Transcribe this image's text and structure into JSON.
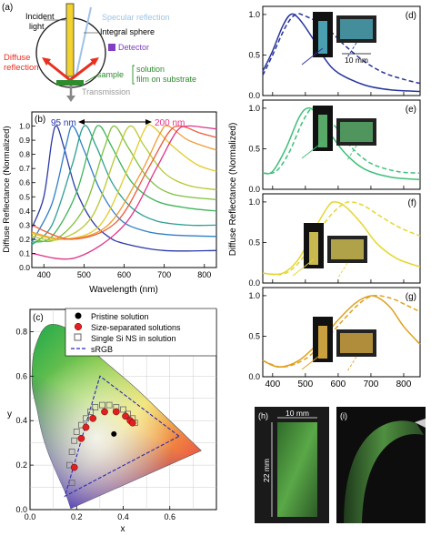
{
  "panel_a": {
    "label": "(a)",
    "incident": "Incident",
    "light": "light",
    "specular": "Specular reflection",
    "integral": "Integral sphere",
    "detector": "Detector",
    "diffuse1": "Diffuse",
    "diffuse2": "reflection",
    "sample": "sample",
    "solution": "solution",
    "film": "film on substrate",
    "transmission": "Transmission",
    "colors": {
      "incident": "#f2d22e",
      "specular": "#9fc3e8",
      "detector": "#8040c0",
      "diffuse": "#e83020",
      "sample": "#2e8b2e",
      "transmission": "#888888"
    }
  },
  "panel_b": {
    "label": "(b)",
    "ann_left": "95 nm",
    "ann_right": "200 nm",
    "ann_left_color": "#2233aa",
    "ann_right_color": "#e0338a"
  },
  "panel_c": {
    "label": "(c)",
    "legend": [
      "Pristine solution",
      "Size-separated solutions",
      "Single Si NS in solution",
      "sRGB"
    ]
  },
  "right_ylabel": "Diffuse Reflectance (Normalized)",
  "right_panels": [
    {
      "label": "(d)",
      "color": "#27349a",
      "scale": "10 mm"
    },
    {
      "label": "(e)",
      "color": "#3fbf7a"
    },
    {
      "label": "(f)",
      "color": "#e6d62e"
    },
    {
      "label": "(g)",
      "color": "#e0a020"
    }
  ],
  "photos": {
    "h_label": "(h)",
    "i_label": "(i)",
    "width_text": "10 mm",
    "height_text": "22 mm"
  },
  "chart_data": [
    {
      "type": "line",
      "panel": "b",
      "xlabel": "Wavelength (nm)",
      "ylabel": "Diffuse Reflectance (Normalized)",
      "xlim": [
        370,
        830
      ],
      "ylim": [
        0,
        1.1
      ],
      "xticks": [
        400,
        500,
        600,
        700,
        800
      ],
      "yticks": [
        0.0,
        0.1,
        0.2,
        0.3,
        0.4,
        0.5,
        0.6,
        0.7,
        0.8,
        0.9,
        1.0
      ],
      "series": [
        {
          "color": "#2a3aa8",
          "values": [
            [
              370,
              0.28
            ],
            [
              400,
              0.5
            ],
            [
              420,
              0.9
            ],
            [
              432,
              1.0
            ],
            [
              450,
              0.85
            ],
            [
              480,
              0.55
            ],
            [
              520,
              0.33
            ],
            [
              560,
              0.22
            ],
            [
              600,
              0.17
            ],
            [
              700,
              0.12
            ],
            [
              830,
              0.12
            ]
          ]
        },
        {
          "color": "#2f7fc7",
          "values": [
            [
              370,
              0.18
            ],
            [
              420,
              0.45
            ],
            [
              455,
              0.86
            ],
            [
              472,
              1.0
            ],
            [
              500,
              0.83
            ],
            [
              540,
              0.55
            ],
            [
              590,
              0.34
            ],
            [
              650,
              0.26
            ],
            [
              720,
              0.23
            ],
            [
              830,
              0.22
            ]
          ]
        },
        {
          "color": "#2e9e92",
          "values": [
            [
              370,
              0.16
            ],
            [
              420,
              0.3
            ],
            [
              470,
              0.72
            ],
            [
              500,
              1.0
            ],
            [
              530,
              0.86
            ],
            [
              570,
              0.6
            ],
            [
              620,
              0.42
            ],
            [
              680,
              0.33
            ],
            [
              760,
              0.3
            ],
            [
              830,
              0.3
            ]
          ]
        },
        {
          "color": "#3fb35a",
          "values": [
            [
              370,
              0.18
            ],
            [
              420,
              0.22
            ],
            [
              480,
              0.52
            ],
            [
              520,
              0.92
            ],
            [
              540,
              1.0
            ],
            [
              570,
              0.85
            ],
            [
              620,
              0.6
            ],
            [
              680,
              0.47
            ],
            [
              760,
              0.42
            ],
            [
              830,
              0.4
            ]
          ]
        },
        {
          "color": "#7fc13c",
          "values": [
            [
              370,
              0.2
            ],
            [
              430,
              0.2
            ],
            [
              500,
              0.42
            ],
            [
              550,
              0.84
            ],
            [
              575,
              1.0
            ],
            [
              610,
              0.85
            ],
            [
              660,
              0.63
            ],
            [
              720,
              0.52
            ],
            [
              830,
              0.48
            ]
          ]
        },
        {
          "color": "#b8c832",
          "values": [
            [
              370,
              0.22
            ],
            [
              440,
              0.2
            ],
            [
              520,
              0.36
            ],
            [
              580,
              0.8
            ],
            [
              615,
              1.0
            ],
            [
              650,
              0.86
            ],
            [
              700,
              0.67
            ],
            [
              760,
              0.58
            ],
            [
              830,
              0.55
            ]
          ]
        },
        {
          "color": "#e3cc2e",
          "values": [
            [
              370,
              0.24
            ],
            [
              450,
              0.2
            ],
            [
              540,
              0.3
            ],
            [
              610,
              0.7
            ],
            [
              650,
              0.97
            ],
            [
              670,
              1.0
            ],
            [
              720,
              0.86
            ],
            [
              780,
              0.73
            ],
            [
              830,
              0.68
            ]
          ]
        },
        {
          "color": "#ef9a30",
          "values": [
            [
              370,
              0.25
            ],
            [
              460,
              0.2
            ],
            [
              560,
              0.3
            ],
            [
              640,
              0.66
            ],
            [
              690,
              0.95
            ],
            [
              710,
              1.0
            ],
            [
              760,
              0.9
            ],
            [
              830,
              0.83
            ]
          ]
        },
        {
          "color": "#ee5a3c",
          "values": [
            [
              370,
              0.3
            ],
            [
              470,
              0.2
            ],
            [
              580,
              0.32
            ],
            [
              660,
              0.7
            ],
            [
              710,
              0.95
            ],
            [
              740,
              1.0
            ],
            [
              790,
              0.95
            ],
            [
              830,
              0.92
            ]
          ]
        },
        {
          "color": "#e0338a",
          "values": [
            [
              370,
              0.1
            ],
            [
              480,
              0.07
            ],
            [
              600,
              0.3
            ],
            [
              680,
              0.7
            ],
            [
              730,
              0.96
            ],
            [
              760,
              1.0
            ],
            [
              800,
              0.99
            ],
            [
              830,
              0.98
            ]
          ]
        }
      ]
    },
    {
      "type": "scatter",
      "panel": "c",
      "xlabel": "x",
      "ylabel": "y",
      "xlim": [
        0.0,
        0.8
      ],
      "ylim": [
        0.0,
        0.9
      ],
      "xticks": [
        0.0,
        0.2,
        0.4,
        0.6
      ],
      "yticks": [
        0.0,
        0.2,
        0.4,
        0.6,
        0.8
      ],
      "series": [
        {
          "name": "Pristine solution",
          "marker": "filled-black",
          "values": [
            [
              0.36,
              0.34
            ]
          ]
        },
        {
          "name": "Size-separated solutions",
          "marker": "filled-red",
          "values": [
            [
              0.19,
              0.19
            ],
            [
              0.22,
              0.32
            ],
            [
              0.24,
              0.37
            ],
            [
              0.27,
              0.41
            ],
            [
              0.32,
              0.44
            ],
            [
              0.37,
              0.44
            ],
            [
              0.41,
              0.42
            ],
            [
              0.43,
              0.4
            ],
            [
              0.44,
              0.39
            ]
          ]
        },
        {
          "name": "Single Si NS in solution",
          "marker": "open-square",
          "values": [
            [
              0.18,
              0.12
            ],
            [
              0.17,
              0.2
            ],
            [
              0.18,
              0.26
            ],
            [
              0.19,
              0.31
            ],
            [
              0.2,
              0.35
            ],
            [
              0.22,
              0.38
            ],
            [
              0.24,
              0.41
            ],
            [
              0.26,
              0.44
            ],
            [
              0.28,
              0.46
            ],
            [
              0.31,
              0.47
            ],
            [
              0.34,
              0.47
            ],
            [
              0.37,
              0.46
            ],
            [
              0.4,
              0.45
            ],
            [
              0.42,
              0.43
            ],
            [
              0.44,
              0.41
            ],
            [
              0.45,
              0.39
            ]
          ]
        },
        {
          "name": "sRGB",
          "marker": "dashed-triangle",
          "values": [
            [
              0.64,
              0.33
            ],
            [
              0.3,
              0.6
            ],
            [
              0.15,
              0.06
            ]
          ]
        }
      ]
    },
    {
      "type": "line",
      "panel": "d",
      "xlim": [
        370,
        850
      ],
      "ylim": [
        0,
        1.1
      ],
      "yticks": [
        0.0,
        0.5,
        1.0
      ],
      "series": [
        {
          "style": "solid",
          "values": [
            [
              370,
              0.3
            ],
            [
              400,
              0.55
            ],
            [
              430,
              0.85
            ],
            [
              455,
              1.0
            ],
            [
              480,
              0.95
            ],
            [
              520,
              0.72
            ],
            [
              560,
              0.45
            ],
            [
              600,
              0.28
            ],
            [
              680,
              0.13
            ],
            [
              760,
              0.07
            ],
            [
              850,
              0.05
            ]
          ]
        },
        {
          "style": "dashed",
          "values": [
            [
              370,
              0.25
            ],
            [
              400,
              0.5
            ],
            [
              440,
              0.85
            ],
            [
              470,
              1.0
            ],
            [
              500,
              0.98
            ],
            [
              560,
              0.85
            ],
            [
              620,
              0.62
            ],
            [
              680,
              0.42
            ],
            [
              740,
              0.28
            ],
            [
              800,
              0.2
            ],
            [
              850,
              0.15
            ]
          ]
        }
      ]
    },
    {
      "type": "line",
      "panel": "e",
      "xlim": [
        370,
        850
      ],
      "ylim": [
        0,
        1.1
      ],
      "yticks": [
        0.0,
        0.5,
        1.0
      ],
      "series": [
        {
          "style": "solid",
          "values": [
            [
              370,
              0.2
            ],
            [
              400,
              0.22
            ],
            [
              440,
              0.5
            ],
            [
              480,
              0.88
            ],
            [
              505,
              1.0
            ],
            [
              530,
              0.95
            ],
            [
              570,
              0.72
            ],
            [
              620,
              0.45
            ],
            [
              680,
              0.25
            ],
            [
              760,
              0.15
            ],
            [
              850,
              0.12
            ]
          ]
        },
        {
          "style": "dashed",
          "values": [
            [
              370,
              0.2
            ],
            [
              410,
              0.22
            ],
            [
              450,
              0.45
            ],
            [
              490,
              0.82
            ],
            [
              520,
              1.0
            ],
            [
              550,
              0.96
            ],
            [
              590,
              0.78
            ],
            [
              640,
              0.52
            ],
            [
              700,
              0.32
            ],
            [
              780,
              0.22
            ],
            [
              850,
              0.2
            ]
          ]
        }
      ]
    },
    {
      "type": "line",
      "panel": "f",
      "xlim": [
        370,
        850
      ],
      "ylim": [
        0,
        1.1
      ],
      "yticks": [
        0.0,
        0.5,
        1.0
      ],
      "series": [
        {
          "style": "solid",
          "values": [
            [
              370,
              0.12
            ],
            [
              430,
              0.12
            ],
            [
              480,
              0.3
            ],
            [
              530,
              0.68
            ],
            [
              570,
              0.95
            ],
            [
              590,
              1.0
            ],
            [
              620,
              0.95
            ],
            [
              670,
              0.74
            ],
            [
              720,
              0.48
            ],
            [
              780,
              0.3
            ],
            [
              850,
              0.2
            ]
          ]
        },
        {
          "style": "dashed",
          "values": [
            [
              370,
              0.12
            ],
            [
              440,
              0.12
            ],
            [
              500,
              0.35
            ],
            [
              560,
              0.75
            ],
            [
              610,
              0.96
            ],
            [
              640,
              1.0
            ],
            [
              680,
              0.95
            ],
            [
              730,
              0.82
            ],
            [
              790,
              0.68
            ],
            [
              850,
              0.58
            ]
          ]
        }
      ]
    },
    {
      "type": "line",
      "panel": "g",
      "xlim": [
        370,
        850
      ],
      "ylim": [
        0,
        1.1
      ],
      "yticks": [
        0.0,
        0.5,
        1.0
      ],
      "series": [
        {
          "style": "solid",
          "values": [
            [
              370,
              0.2
            ],
            [
              420,
              0.12
            ],
            [
              480,
              0.2
            ],
            [
              540,
              0.42
            ],
            [
              600,
              0.7
            ],
            [
              650,
              0.9
            ],
            [
              690,
              0.99
            ],
            [
              720,
              0.98
            ],
            [
              760,
              0.85
            ],
            [
              800,
              0.62
            ],
            [
              850,
              0.4
            ]
          ]
        },
        {
          "style": "dashed",
          "values": [
            [
              370,
              0.2
            ],
            [
              430,
              0.12
            ],
            [
              500,
              0.22
            ],
            [
              560,
              0.45
            ],
            [
              620,
              0.72
            ],
            [
              670,
              0.92
            ],
            [
              710,
              1.0
            ],
            [
              760,
              0.97
            ],
            [
              810,
              0.88
            ],
            [
              850,
              0.8
            ]
          ]
        }
      ]
    }
  ]
}
